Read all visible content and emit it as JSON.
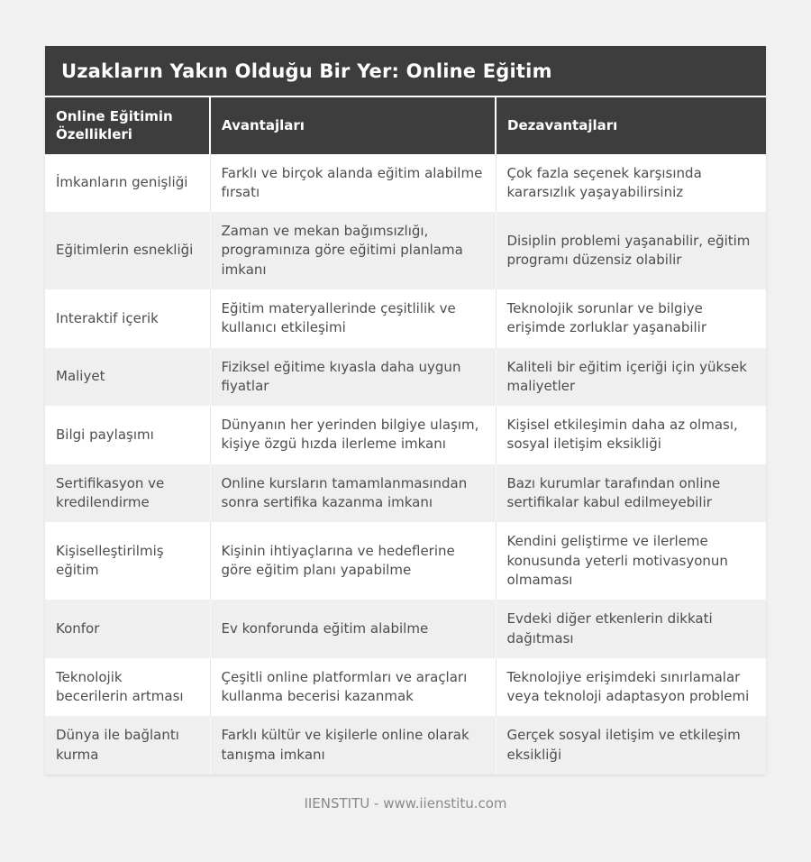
{
  "page": {
    "title": "Uzakların Yakın Olduğu Bir Yer: Online Eğitim",
    "footer": "IIENSTITU - www.iienstitu.com"
  },
  "colors": {
    "header_background": "#3d3d3d",
    "header_text": "#ffffff",
    "row_stripe": "#efefef",
    "body_text": "#4d4d4d",
    "page_background": "#f1f1f2"
  },
  "table": {
    "columns": [
      "Online Eğitimin Özellikleri",
      "Avantajları",
      "Dezavantajları"
    ],
    "rows": [
      {
        "feature": "İmkanların genişliği",
        "advantage": "Farklı ve birçok alanda eğitim alabilme fırsatı",
        "disadvantage": "Çok fazla seçenek karşısında kararsızlık yaşayabilirsiniz"
      },
      {
        "feature": "Eğitimlerin esnekliği",
        "advantage": "Zaman ve mekan bağımsızlığı, programınıza göre eğitimi planlama imkanı",
        "disadvantage": "Disiplin problemi yaşanabilir, eğitim programı düzensiz olabilir"
      },
      {
        "feature": "Interaktif içerik",
        "advantage": "Eğitim materyallerinde çeşitlilik ve kullanıcı etkileşimi",
        "disadvantage": "Teknolojik sorunlar ve bilgiye erişimde zorluklar yaşanabilir"
      },
      {
        "feature": "Maliyet",
        "advantage": "Fiziksel eğitime kıyasla daha uygun fiyatlar",
        "disadvantage": "Kaliteli bir eğitim içeriği için yüksek maliyetler"
      },
      {
        "feature": "Bilgi paylaşımı",
        "advantage": "Dünyanın her yerinden bilgiye ulaşım, kişiye özgü hızda ilerleme imkanı",
        "disadvantage": "Kişisel etkileşimin daha az olması, sosyal iletişim eksikliği"
      },
      {
        "feature": "Sertifikasyon ve kredilendirme",
        "advantage": "Online kursların tamamlanmasından sonra sertifika kazanma imkanı",
        "disadvantage": "Bazı kurumlar tarafından online sertifikalar kabul edilmeyebilir"
      },
      {
        "feature": "Kişiselleştirilmiş eğitim",
        "advantage": "Kişinin ihtiyaçlarına ve hedeflerine göre eğitim planı yapabilme",
        "disadvantage": "Kendini geliştirme ve ilerleme konusunda yeterli motivasyonun olmaması"
      },
      {
        "feature": "Konfor",
        "advantage": "Ev konforunda eğitim alabilme",
        "disadvantage": "Evdeki diğer etkenlerin dikkati dağıtması"
      },
      {
        "feature": "Teknolojik becerilerin artması",
        "advantage": "Çeşitli online platformları ve araçları kullanma becerisi kazanmak",
        "disadvantage": "Teknolojiye erişimdeki sınırlamalar veya teknoloji adaptasyon problemi"
      },
      {
        "feature": "Dünya ile bağlantı kurma",
        "advantage": "Farklı kültür ve kişilerle online olarak tanışma imkanı",
        "disadvantage": "Gerçek sosyal iletişim ve etkileşim eksikliği"
      }
    ]
  }
}
